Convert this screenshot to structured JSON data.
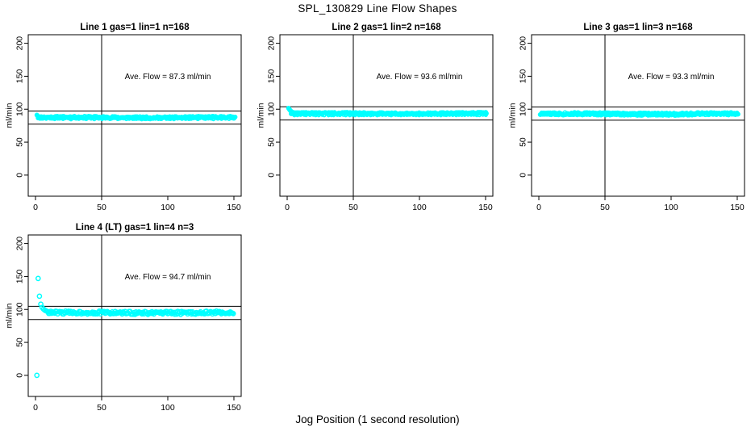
{
  "title": "SPL_130829  Line Flow Shapes",
  "xlabel": "Jog Position (1 second resolution)",
  "ylabel": "ml/min",
  "colors": {
    "points": "#00FFFF",
    "axis": "#000000",
    "text": "#000000",
    "background": "#FFFFFF"
  },
  "chart_data": {
    "type": "scatter",
    "title": "SPL_130829  Line Flow Shapes",
    "xlabel": "Jog Position (1 second resolution)",
    "ylabel": "ml/min",
    "layout": "2-rows-3-cols-4-panels",
    "grid": false,
    "shared": {
      "x_ticks": [
        0,
        50,
        100,
        150
      ],
      "y_ticks": [
        0,
        50,
        100,
        150,
        200
      ],
      "xlim": [
        -5.5,
        155.5
      ],
      "ylim": [
        -32,
        213
      ],
      "vline_x": 50,
      "marker": "open-circle",
      "marker_color": "#00FFFF"
    },
    "panels": [
      {
        "title": "Line 1 gas=1 lin=1 n=168",
        "annotation": "Ave. Flow =  87.3  ml/min",
        "annotation_xy": [
          100,
          150
        ],
        "ave_flow": 87.3,
        "ref_lines": [
          97.3,
          77.3
        ],
        "head_points": [
          [
            1,
            91.2
          ],
          [
            1.4,
            90.3
          ],
          [
            1.8,
            89.5
          ],
          [
            2.2,
            88.9
          ],
          [
            2.6,
            88.5
          ],
          [
            3,
            88.2
          ],
          [
            4,
            87.8
          ]
        ],
        "band": {
          "x_start": 2,
          "x_end": 151,
          "y_center": 87.4,
          "jitter": 1.7,
          "step": 0.45
        },
        "under_dots": {
          "y": 84.9,
          "x_start": 8,
          "x_end": 148,
          "step": 6,
          "jitter": 0.4
        },
        "marker_r": 2.2,
        "seed": 11
      },
      {
        "title": "Line 2 gas=1 lin=2 n=168",
        "annotation": "Ave. Flow =  93.6  ml/min",
        "annotation_xy": [
          100,
          150
        ],
        "ave_flow": 93.6,
        "ref_lines": [
          103.6,
          83.6
        ],
        "head_points": [
          [
            1,
            101.5
          ],
          [
            1.4,
            100.5
          ],
          [
            1.8,
            99.4
          ],
          [
            2.2,
            98.4
          ],
          [
            2.6,
            97.5
          ],
          [
            3,
            96.8
          ],
          [
            3.5,
            96.1
          ],
          [
            4,
            95.5
          ],
          [
            4.5,
            95.0
          ],
          [
            5,
            94.6
          ],
          [
            6,
            94.2
          ],
          [
            7,
            93.9
          ],
          [
            8,
            93.8
          ]
        ],
        "band": {
          "x_start": 3,
          "x_end": 151,
          "y_center": 93.7,
          "jitter": 1.3,
          "step": 0.45
        },
        "under_dots": {
          "y": 91.1,
          "x_start": 5,
          "x_end": 150,
          "step": 2.3,
          "jitter": 0.5
        },
        "marker_r": 2.2,
        "seed": 22
      },
      {
        "title": "Line 3 gas=1 lin=3 n=168",
        "annotation": "Ave. Flow =  93.3  ml/min",
        "annotation_xy": [
          100,
          150
        ],
        "ave_flow": 93.3,
        "ref_lines": [
          103.3,
          83.3
        ],
        "head_points": [],
        "band": {
          "x_start": 1,
          "x_end": 151,
          "y_center": 92.8,
          "jitter": 2.0,
          "step": 0.4
        },
        "under_dots": null,
        "marker_r": 2.2,
        "seed": 33
      },
      {
        "title": "Line 4 (LT) gas=1 lin=4 n=3",
        "annotation": "Ave. Flow =  94.7  ml/min",
        "annotation_xy": [
          100,
          150
        ],
        "ave_flow": 94.7,
        "ref_lines": [
          104.7,
          84.7
        ],
        "head_points": [
          [
            1,
            0
          ],
          [
            2,
            147
          ],
          [
            3,
            120
          ],
          [
            4,
            108
          ],
          [
            5,
            103
          ],
          [
            6,
            100.5
          ],
          [
            7,
            99
          ],
          [
            8,
            97.8
          ],
          [
            9,
            96.9
          ],
          [
            10,
            96.3
          ]
        ],
        "band": {
          "x_start": 10,
          "x_end": 150,
          "y_center": 94.9,
          "jitter": 2.3,
          "step": 0.75
        },
        "under_dots": null,
        "marker_r": 2.6,
        "seed": 44
      }
    ]
  }
}
